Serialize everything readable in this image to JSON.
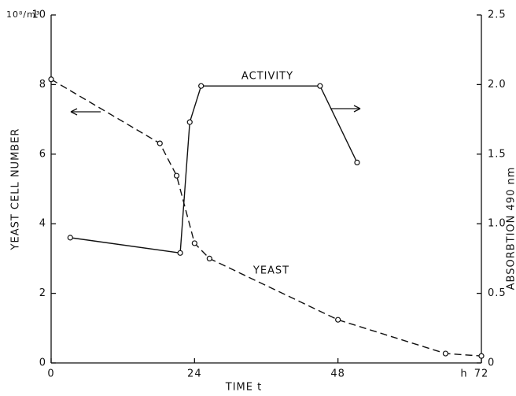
{
  "chart_data": {
    "type": "line",
    "xlabel": "TIME t",
    "x_unit": "h",
    "ylabel": "YEAST CELL NUMBER",
    "y_unit": "10⁸/m³",
    "y2label": "ABSORBTION  490 nm",
    "annotations": [
      "ACTIVITY",
      "YEAST"
    ],
    "xlim": [
      0,
      72
    ],
    "xticks": [
      0,
      24,
      48,
      72
    ],
    "ylim": [
      0,
      10
    ],
    "yticks": [
      0,
      2,
      4,
      6,
      8,
      10
    ],
    "y2lim": [
      0,
      2.5
    ],
    "y2ticks": [
      0,
      0.5,
      {
        "value": 1.0,
        "label": "1.0"
      },
      {
        "value": 1.5,
        "label": "1.5"
      },
      {
        "value": 2.0,
        "label": "2.0"
      },
      2.5
    ],
    "series": [
      {
        "name": "YEAST",
        "color": "#111111",
        "dashed": true,
        "axis": "y",
        "x": [
          0,
          18.2,
          21,
          24,
          26.5,
          48,
          66,
          72
        ],
        "values": [
          8.15,
          6.31,
          5.38,
          3.44,
          3.0,
          1.24,
          0.27,
          0.2
        ]
      },
      {
        "name": "ACTIVITY",
        "color": "#111111",
        "dashed": false,
        "axis": "y2",
        "x": [
          3.2,
          21.6,
          23.2,
          25.1,
          45,
          51.2
        ],
        "values": [
          0.9,
          0.79,
          1.73,
          1.99,
          1.99,
          1.44
        ]
      }
    ]
  }
}
